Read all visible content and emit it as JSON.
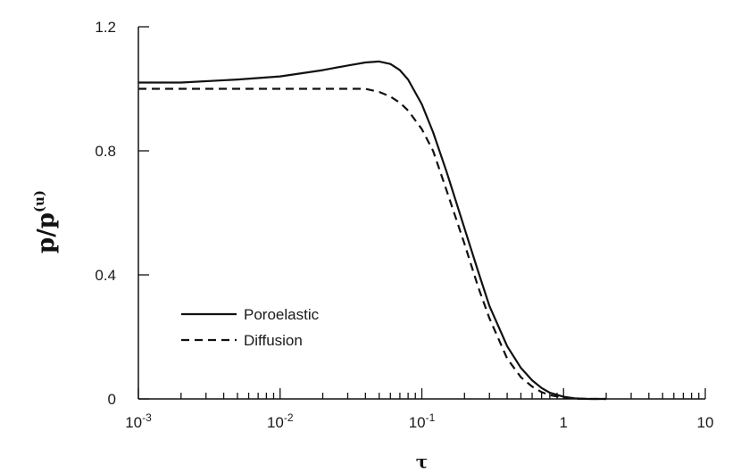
{
  "chart_data": {
    "type": "line",
    "xscale": "log",
    "xlim": [
      0.001,
      10
    ],
    "ylim": [
      0,
      1.2
    ],
    "xlabel": "τ",
    "ylabel_main": "p/p",
    "ylabel_sup": "(u)",
    "x_ticks": [
      {
        "value": 0.001,
        "base": "10",
        "exp": "-3"
      },
      {
        "value": 0.01,
        "base": "10",
        "exp": "-2"
      },
      {
        "value": 0.1,
        "base": "10",
        "exp": "-1"
      },
      {
        "value": 1,
        "base": "1",
        "exp": ""
      },
      {
        "value": 10,
        "base": "10",
        "exp": ""
      }
    ],
    "y_ticks": [
      {
        "value": 0,
        "label": "0"
      },
      {
        "value": 0.4,
        "label": "0.4"
      },
      {
        "value": 0.8,
        "label": "0.8"
      },
      {
        "value": 1.2,
        "label": "1.2"
      }
    ],
    "grid": false,
    "legend_position": "lower-left",
    "series": [
      {
        "name": "Poroelastic",
        "style": "solid",
        "color": "#111111",
        "x": [
          0.001,
          0.002,
          0.005,
          0.01,
          0.02,
          0.03,
          0.04,
          0.05,
          0.06,
          0.07,
          0.08,
          0.1,
          0.12,
          0.15,
          0.2,
          0.25,
          0.3,
          0.4,
          0.5,
          0.6,
          0.7,
          0.8,
          1.0,
          1.2,
          1.5,
          2.0
        ],
        "y": [
          1.02,
          1.02,
          1.03,
          1.04,
          1.06,
          1.075,
          1.085,
          1.088,
          1.08,
          1.06,
          1.03,
          0.95,
          0.86,
          0.73,
          0.55,
          0.41,
          0.3,
          0.17,
          0.1,
          0.06,
          0.035,
          0.02,
          0.007,
          0.002,
          0.0,
          0.0
        ]
      },
      {
        "name": "Diffusion",
        "style": "dashed",
        "color": "#111111",
        "x": [
          0.001,
          0.002,
          0.005,
          0.01,
          0.02,
          0.03,
          0.04,
          0.05,
          0.06,
          0.07,
          0.08,
          0.1,
          0.12,
          0.15,
          0.2,
          0.25,
          0.3,
          0.4,
          0.5,
          0.6,
          0.7,
          0.8,
          1.0,
          1.2,
          1.5,
          2.0
        ],
        "y": [
          1.0,
          1.0,
          1.0,
          1.0,
          1.0,
          1.0,
          1.0,
          0.99,
          0.975,
          0.955,
          0.93,
          0.87,
          0.8,
          0.67,
          0.5,
          0.36,
          0.26,
          0.13,
          0.07,
          0.04,
          0.022,
          0.012,
          0.004,
          0.001,
          0.0,
          0.0
        ]
      }
    ]
  }
}
